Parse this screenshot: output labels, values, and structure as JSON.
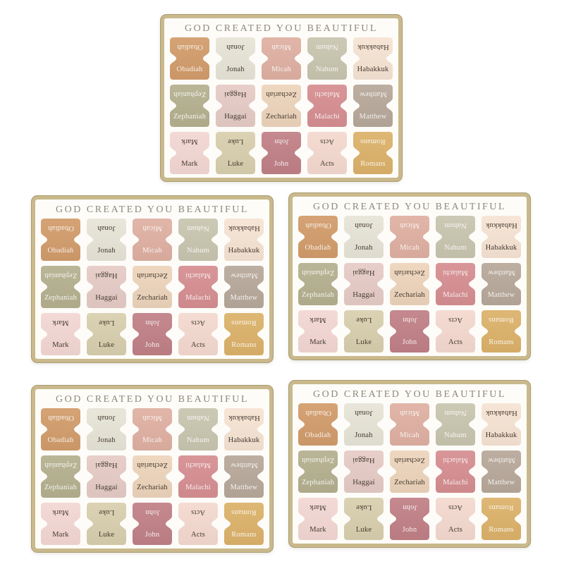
{
  "product": {
    "sheet_count": 5,
    "description": "Bible index tab sticker sheets"
  },
  "sheet": {
    "title": "GOD CREATED YOU BEAUTIFUL",
    "title_color": "#8f897b",
    "border_color": "#c9b98c",
    "background": "#fdfcf9",
    "text_colors": {
      "light": "rgba(255,255,255,0.85)",
      "dark": "#443a2f"
    },
    "tabs": [
      {
        "book": "Obadiah",
        "color": "#d29c6b",
        "text_style": "light"
      },
      {
        "book": "Jonah",
        "color": "#e7e4d7",
        "text_style": "dark"
      },
      {
        "book": "Micah",
        "color": "#dfb0a2",
        "text_style": "light"
      },
      {
        "book": "Nahum",
        "color": "#c8c5af",
        "text_style": "light"
      },
      {
        "book": "Habakkuk",
        "color": "#f6e3d3",
        "text_style": "dark"
      },
      {
        "book": "Zephaniah",
        "color": "#b4b08f",
        "text_style": "light"
      },
      {
        "book": "Haggai",
        "color": "#e6cbc6",
        "text_style": "dark"
      },
      {
        "book": "Zechariah",
        "color": "#edd4bb",
        "text_style": "dark"
      },
      {
        "book": "Malachi",
        "color": "#d68e91",
        "text_style": "light"
      },
      {
        "book": "Matthew",
        "color": "#b7a89a",
        "text_style": "light"
      },
      {
        "book": "Mark",
        "color": "#f3d7d3",
        "text_style": "dark"
      },
      {
        "book": "Luke",
        "color": "#d8cfae",
        "text_style": "dark"
      },
      {
        "book": "John",
        "color": "#c08086",
        "text_style": "light"
      },
      {
        "book": "Acts",
        "color": "#f4d9cf",
        "text_style": "dark"
      },
      {
        "book": "Romans",
        "color": "#dcb26a",
        "text_style": "light"
      }
    ]
  }
}
